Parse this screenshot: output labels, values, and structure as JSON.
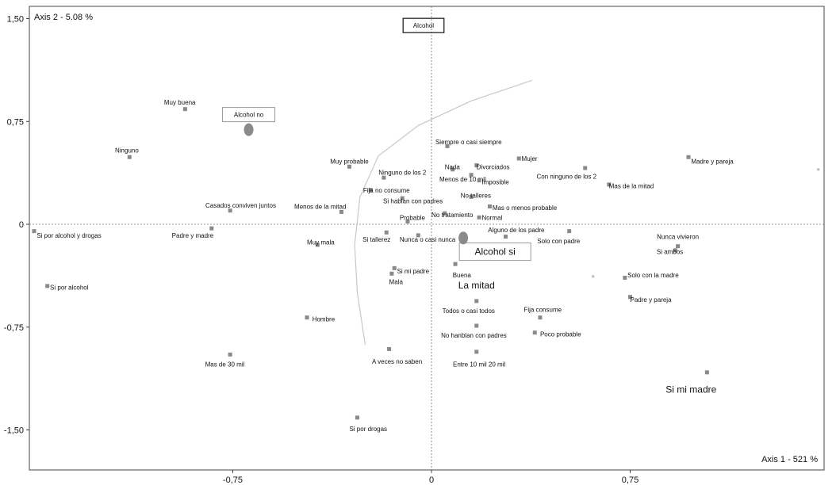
{
  "chart_data": {
    "type": "scatter",
    "title": "",
    "axis_x_title": "Axis 1 - 521 %",
    "axis_y_title": "Axis 2 - 5.08 %",
    "xlim": [
      -1.5,
      1.48
    ],
    "ylim": [
      -1.82,
      1.58
    ],
    "x_ticks": [
      -0.75,
      0,
      0.75
    ],
    "x_tick_labels": [
      "-0,75",
      "0",
      "0,75"
    ],
    "y_ticks": [
      1.5,
      0.75,
      0,
      -0.75,
      -1.5
    ],
    "y_tick_labels": [
      "1,50",
      "0,75",
      "0",
      "-0,75",
      "-1,50"
    ],
    "grid": false,
    "curve": [
      [
        -0.25,
        -0.88
      ],
      [
        -0.28,
        -0.5
      ],
      [
        -0.29,
        -0.15
      ],
      [
        -0.27,
        0.2
      ],
      [
        -0.2,
        0.5
      ],
      [
        -0.05,
        0.72
      ],
      [
        0.15,
        0.9
      ],
      [
        0.38,
        1.05
      ]
    ],
    "boxed_labels": [
      {
        "text": "Alcohol",
        "x": -0.03,
        "y": 1.45
      },
      {
        "text": "Alcohol no",
        "x": -0.69,
        "y": 0.8
      },
      {
        "text": "Alcohol si",
        "x": 0.24,
        "y": -0.2
      }
    ],
    "points": [
      {
        "label": "Muy buena",
        "x": -0.93,
        "y": 0.84,
        "lx": -0.95,
        "ly": 0.89,
        "anchor": "middle"
      },
      {
        "label": "Ninguno",
        "x": -1.14,
        "y": 0.49,
        "lx": -1.15,
        "ly": 0.54,
        "anchor": "middle"
      },
      {
        "label": "Casados conviven juntos",
        "x": -0.76,
        "y": 0.1,
        "lx": -0.72,
        "ly": 0.14,
        "anchor": "middle"
      },
      {
        "label": "Si por alcohol y drogas",
        "x": -1.5,
        "y": -0.05,
        "lx": -1.49,
        "ly": -0.08,
        "anchor": "start"
      },
      {
        "label": "Padre y madre",
        "x": -0.83,
        "y": -0.03,
        "lx": -0.98,
        "ly": -0.08,
        "anchor": "start"
      },
      {
        "label": "Si por alcohol",
        "x": -1.45,
        "y": -0.45,
        "lx": -1.44,
        "ly": -0.46,
        "anchor": "start"
      },
      {
        "label": "Mas de 30 mil",
        "x": -0.76,
        "y": -0.95,
        "lx": -0.78,
        "ly": -1.02,
        "anchor": "middle"
      },
      {
        "label": "Hombre",
        "x": -0.47,
        "y": -0.68,
        "lx": -0.45,
        "ly": -0.69,
        "anchor": "start"
      },
      {
        "label": "Muy probable",
        "x": -0.31,
        "y": 0.42,
        "lx": -0.31,
        "ly": 0.46,
        "anchor": "middle"
      },
      {
        "label": "Menos de la mitad",
        "x": -0.34,
        "y": 0.09,
        "lx": -0.42,
        "ly": 0.13,
        "anchor": "middle"
      },
      {
        "label": "Muy mala",
        "x": -0.43,
        "y": -0.15,
        "lx": -0.47,
        "ly": -0.13,
        "anchor": "start"
      },
      {
        "label": "Ninguno de los 2",
        "x": -0.18,
        "y": 0.34,
        "lx": -0.11,
        "ly": 0.38,
        "anchor": "middle"
      },
      {
        "label": "Fija no consume",
        "x": -0.23,
        "y": 0.25,
        "lx": -0.17,
        "ly": 0.25,
        "anchor": "middle"
      },
      {
        "label": "Si hablan con padres",
        "x": -0.11,
        "y": 0.19,
        "lx": -0.07,
        "ly": 0.17,
        "anchor": "middle"
      },
      {
        "label": "Probable",
        "x": -0.09,
        "y": 0.02,
        "lx": -0.12,
        "ly": 0.05,
        "anchor": "start"
      },
      {
        "label": "Si tallerez",
        "x": -0.17,
        "y": -0.06,
        "lx": -0.26,
        "ly": -0.11,
        "anchor": "start"
      },
      {
        "label": "Nunca o casi nunca",
        "x": -0.05,
        "y": -0.08,
        "lx": -0.12,
        "ly": -0.11,
        "anchor": "start"
      },
      {
        "label": "Si mi padre",
        "x": -0.14,
        "y": -0.32,
        "lx": -0.13,
        "ly": -0.34,
        "anchor": "start"
      },
      {
        "label": "Mala",
        "x": -0.15,
        "y": -0.36,
        "lx": -0.16,
        "ly": -0.42,
        "anchor": "start"
      },
      {
        "label": "A veces no saben",
        "x": -0.16,
        "y": -0.91,
        "lx": -0.13,
        "ly": -1.0,
        "anchor": "middle"
      },
      {
        "label": "Si por drogas",
        "x": -0.28,
        "y": -1.41,
        "lx": -0.31,
        "ly": -1.49,
        "anchor": "start"
      },
      {
        "label": "Siempre o casi siempre",
        "x": 0.06,
        "y": 0.57,
        "lx": 0.14,
        "ly": 0.6,
        "anchor": "middle"
      },
      {
        "label": "Nada",
        "x": 0.08,
        "y": 0.4,
        "lx": 0.05,
        "ly": 0.42,
        "anchor": "start"
      },
      {
        "label": "Divorciados",
        "x": 0.17,
        "y": 0.43,
        "lx": 0.17,
        "ly": 0.42,
        "anchor": "start"
      },
      {
        "label": "Mujer",
        "x": 0.33,
        "y": 0.48,
        "lx": 0.34,
        "ly": 0.48,
        "anchor": "start"
      },
      {
        "label": "Menos de 10 mil",
        "x": 0.15,
        "y": 0.36,
        "lx": 0.03,
        "ly": 0.33,
        "anchor": "start"
      },
      {
        "label": "Imposible",
        "x": 0.18,
        "y": 0.32,
        "lx": 0.19,
        "ly": 0.31,
        "anchor": "start"
      },
      {
        "label": "No talleres",
        "x": 0.15,
        "y": 0.2,
        "lx": 0.11,
        "ly": 0.21,
        "anchor": "start"
      },
      {
        "label": "Mas o menos probable",
        "x": 0.22,
        "y": 0.13,
        "lx": 0.23,
        "ly": 0.12,
        "anchor": "start"
      },
      {
        "label": "No tratamiento",
        "x": 0.05,
        "y": 0.08,
        "lx": 0.0,
        "ly": 0.07,
        "anchor": "start"
      },
      {
        "label": "Normal",
        "x": 0.18,
        "y": 0.05,
        "lx": 0.19,
        "ly": 0.05,
        "anchor": "start"
      },
      {
        "label": "Alguno de los padre",
        "x": 0.28,
        "y": -0.09,
        "lx": 0.32,
        "ly": -0.04,
        "anchor": "middle"
      },
      {
        "label": "Buena",
        "x": 0.09,
        "y": -0.29,
        "lx": 0.08,
        "ly": -0.37,
        "anchor": "start"
      },
      {
        "label": "Todos o casi todos",
        "x": 0.17,
        "y": -0.56,
        "lx": 0.14,
        "ly": -0.63,
        "anchor": "middle"
      },
      {
        "label": "No hanblan con padres",
        "x": 0.17,
        "y": -0.74,
        "lx": 0.16,
        "ly": -0.81,
        "anchor": "middle"
      },
      {
        "label": "Entre 10 mil 20 mil",
        "x": 0.17,
        "y": -0.93,
        "lx": 0.18,
        "ly": -1.02,
        "anchor": "middle"
      },
      {
        "label": "Fija consume",
        "x": 0.41,
        "y": -0.68,
        "lx": 0.42,
        "ly": -0.62,
        "anchor": "middle"
      },
      {
        "label": "Poco probable",
        "x": 0.39,
        "y": -0.79,
        "lx": 0.41,
        "ly": -0.8,
        "anchor": "start"
      },
      {
        "label": "Con ninguno de los 2",
        "x": 0.58,
        "y": 0.41,
        "lx": 0.51,
        "ly": 0.35,
        "anchor": "middle"
      },
      {
        "label": "Mas de la mitad",
        "x": 0.67,
        "y": 0.29,
        "lx": 0.67,
        "ly": 0.28,
        "anchor": "start"
      },
      {
        "label": "Madre y pareja",
        "x": 0.97,
        "y": 0.49,
        "lx": 0.98,
        "ly": 0.46,
        "anchor": "start"
      },
      {
        "label": "Solo con padre",
        "x": 0.52,
        "y": -0.05,
        "lx": 0.48,
        "ly": -0.12,
        "anchor": "middle"
      },
      {
        "label": "Nunca vivieron",
        "x": 0.93,
        "y": -0.16,
        "lx": 0.93,
        "ly": -0.09,
        "anchor": "middle"
      },
      {
        "label": "Si ambos",
        "x": 0.92,
        "y": -0.19,
        "lx": 0.85,
        "ly": -0.2,
        "anchor": "start"
      },
      {
        "label": "Solo con la madre",
        "x": 0.73,
        "y": -0.39,
        "lx": 0.74,
        "ly": -0.37,
        "anchor": "start"
      },
      {
        "label": "Padre y pareja",
        "x": 0.75,
        "y": -0.53,
        "lx": 0.75,
        "ly": -0.55,
        "anchor": "start"
      },
      {
        "label": "La mitad",
        "x": 0.17,
        "y": -0.45,
        "lx": 0.17,
        "ly": -0.45,
        "anchor": "middle",
        "size": "big",
        "marker": false
      },
      {
        "label": "Si mi madre",
        "x": 1.04,
        "y": -1.08,
        "lx": 0.98,
        "ly": -1.21,
        "anchor": "middle",
        "size": "big"
      }
    ],
    "centroids": [
      {
        "x": -0.69,
        "y": 0.69
      },
      {
        "x": 0.12,
        "y": -0.1
      }
    ],
    "extra_markers": [
      {
        "x": 0.61,
        "y": -0.38
      },
      {
        "x": 1.46,
        "y": 0.4
      }
    ]
  }
}
